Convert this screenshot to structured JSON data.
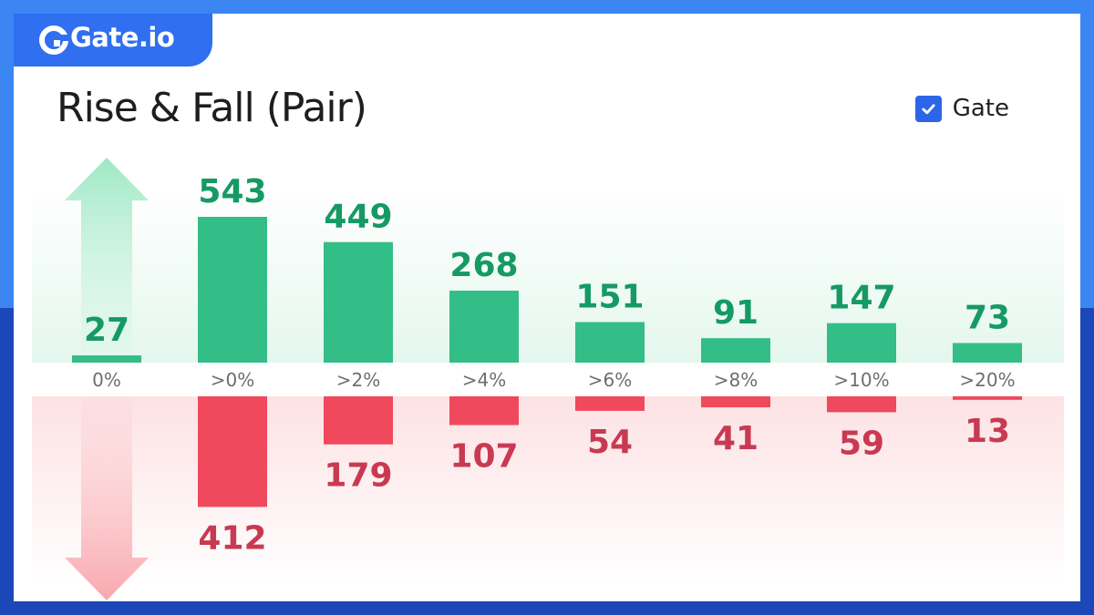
{
  "brand": {
    "name": "Gate.io",
    "color": "#2f6ff0"
  },
  "title": "Rise & Fall (Pair)",
  "legend": {
    "label": "Gate",
    "checked": true,
    "icon": "checkbox-checked-icon"
  },
  "colors": {
    "rise": "#33bd87",
    "rise_text": "#159a64",
    "fall": "#f0485c",
    "fall_text": "#c83a52",
    "category_text": "#6e6e6e"
  },
  "chart_data": {
    "type": "bar",
    "categories": [
      "0%",
      ">0%",
      ">2%",
      ">4%",
      ">6%",
      ">8%",
      ">10%",
      ">20%"
    ],
    "series": [
      {
        "values": [
          27,
          543,
          449,
          268,
          151,
          91,
          147,
          73
        ]
      },
      {
        "values": [
          0,
          412,
          179,
          107,
          54,
          41,
          59,
          13
        ]
      }
    ],
    "rise_labels": [
      "27",
      "543",
      "449",
      "268",
      "151",
      "91",
      "147",
      "73"
    ],
    "fall_labels": [
      "",
      "412",
      "179",
      "107",
      "54",
      "41",
      "59",
      "13"
    ],
    "layout": "diverging: rise bars above category axis, fall bars below",
    "grid": false
  }
}
